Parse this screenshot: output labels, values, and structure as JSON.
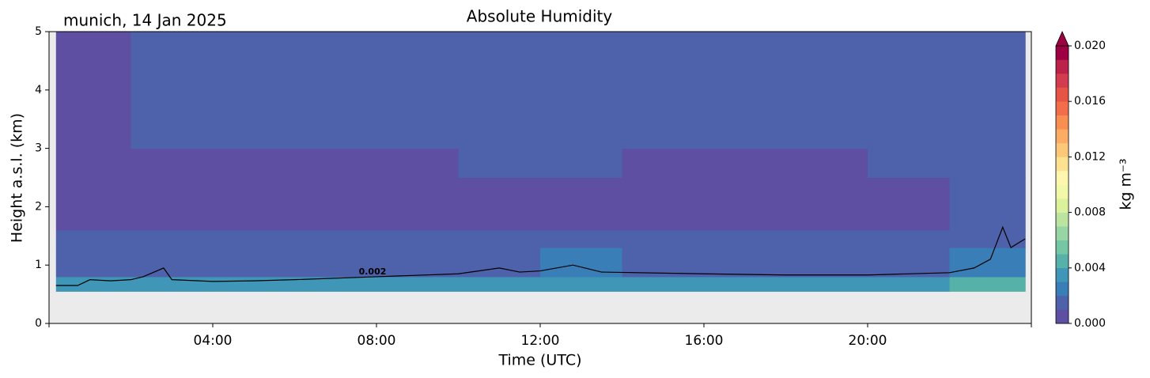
{
  "chart_data": {
    "type": "heatmap",
    "title": "Absolute Humidity",
    "location_label": "munich, 14 Jan 2025",
    "xlabel": "Time (UTC)",
    "ylabel": "Height a.s.l. (km)",
    "xlim": [
      0,
      24
    ],
    "ylim": [
      0,
      5
    ],
    "xticks": [
      {
        "value": 4,
        "label": "04:00"
      },
      {
        "value": 8,
        "label": "08:00"
      },
      {
        "value": 12,
        "label": "12:00"
      },
      {
        "value": 16,
        "label": "16:00"
      },
      {
        "value": 20,
        "label": "20:00"
      }
    ],
    "yticks": [
      0,
      1,
      2,
      3,
      4,
      5
    ],
    "x_bins": [
      0.17,
      2,
      4,
      6,
      8,
      10,
      12,
      14,
      16,
      18,
      20,
      22,
      23.85
    ],
    "y_bins": [
      0.55,
      0.8,
      1.3,
      1.6,
      2.5,
      3.0,
      4.0,
      5.0
    ],
    "values": [
      [
        0.0031,
        0.0032,
        0.0032,
        0.0032,
        0.0033,
        0.0034,
        0.0035,
        0.0034,
        0.0034,
        0.0034,
        0.0035,
        0.0042
      ],
      [
        0.0018,
        0.0019,
        0.0019,
        0.0019,
        0.0019,
        0.0019,
        0.0021,
        0.0019,
        0.0019,
        0.0019,
        0.0019,
        0.0026
      ],
      [
        0.0012,
        0.0013,
        0.0013,
        0.0012,
        0.0012,
        0.0012,
        0.0013,
        0.0012,
        0.0012,
        0.0012,
        0.0013,
        0.0016
      ],
      [
        0.0008,
        0.0008,
        0.0008,
        0.0008,
        0.0008,
        0.0008,
        0.0008,
        0.0008,
        0.0008,
        0.0008,
        0.0009,
        0.0012
      ],
      [
        0.0008,
        0.0009,
        0.0009,
        0.0009,
        0.0009,
        0.0011,
        0.0012,
        0.0009,
        0.0009,
        0.0009,
        0.0011,
        0.0014
      ],
      [
        0.0008,
        0.0012,
        0.0012,
        0.0012,
        0.0012,
        0.0012,
        0.0012,
        0.0012,
        0.0012,
        0.0012,
        0.0012,
        0.0016
      ],
      [
        0.0008,
        0.0012,
        0.0012,
        0.0012,
        0.0012,
        0.0012,
        0.0012,
        0.0012,
        0.0012,
        0.0012,
        0.0012,
        0.0015
      ]
    ],
    "contour": {
      "level": 0.002,
      "x": [
        0.17,
        0.7,
        1.0,
        1.5,
        2.0,
        2.3,
        2.8,
        3.0,
        4.0,
        5.0,
        6.0,
        8.0,
        10.0,
        11.0,
        11.5,
        12.0,
        12.8,
        13.5,
        16.0,
        18.0,
        20.0,
        22.0,
        22.6,
        23.0,
        23.3,
        23.5,
        23.85
      ],
      "y": [
        0.65,
        0.65,
        0.75,
        0.73,
        0.75,
        0.8,
        0.95,
        0.75,
        0.72,
        0.73,
        0.75,
        0.8,
        0.85,
        0.95,
        0.88,
        0.9,
        1.0,
        0.88,
        0.85,
        0.83,
        0.83,
        0.87,
        0.95,
        1.1,
        1.65,
        1.3,
        1.45
      ]
    },
    "colorbar": {
      "label": "kg m⁻³",
      "clim": [
        0,
        0.02
      ],
      "step": 0.001,
      "colors": [
        "#5e4fa2",
        "#4e62ab",
        "#3a7eb8",
        "#3f96b7",
        "#56b1a9",
        "#74c6a5",
        "#98d5a4",
        "#bbe4a0",
        "#dbf19c",
        "#f1f9a9",
        "#fef6af",
        "#fee291",
        "#fdc877",
        "#fcac63",
        "#f98e52",
        "#f26d4a",
        "#e65446",
        "#d33c4e",
        "#bb2149",
        "#9e0142"
      ],
      "ticks": [
        {
          "value": 0,
          "label": "0.000"
        },
        {
          "value": 0.004,
          "label": "0.004"
        },
        {
          "value": 0.008,
          "label": "0.008"
        },
        {
          "value": 0.012,
          "label": "0.012"
        },
        {
          "value": 0.016,
          "label": "0.016"
        },
        {
          "value": 0.02,
          "label": "0.020"
        }
      ]
    }
  }
}
